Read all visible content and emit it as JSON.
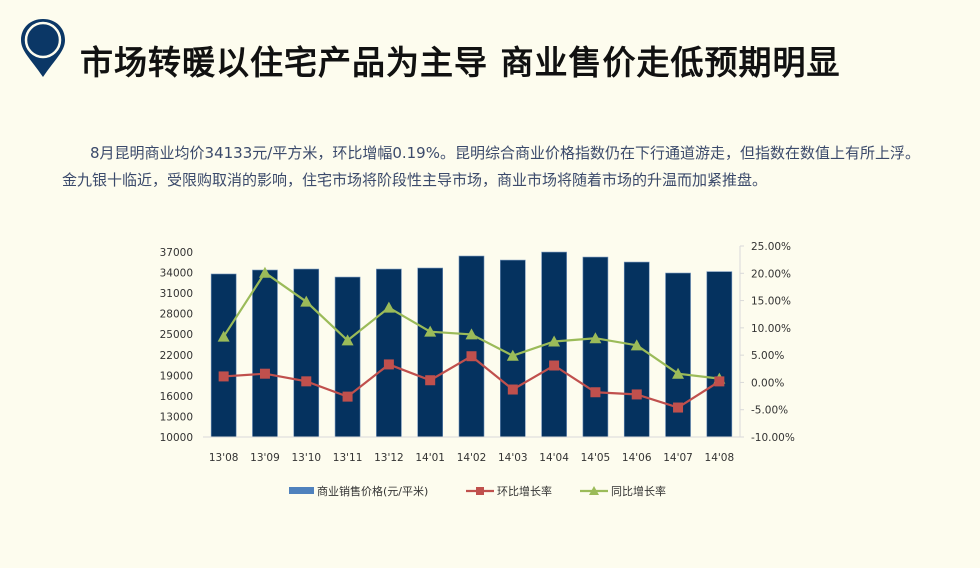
{
  "header": {
    "icon": "map-pin-icon",
    "title": "市场转暖以住宅产品为主导 商业售价走低预期明显"
  },
  "summary": {
    "text": "8月昆明商业均价34133元/平方米，环比增幅0.19%。昆明综合商业价格指数仍在下行通道游走，但指数在数值上有所上浮。金九银十临近，受限购取消的影响，住宅市场将阶段性主导市场，商业市场将随着市场的升温而加紧推盘。"
  },
  "colors": {
    "bar": "#05325f",
    "mom": "#c0504d",
    "yoy": "#9bbb59",
    "pin": "#0b3766"
  },
  "chart_data": {
    "type": "bar",
    "categories": [
      "13'08",
      "13'09",
      "13'10",
      "13'11",
      "13'12",
      "14'01",
      "14'02",
      "14'03",
      "14'04",
      "14'05",
      "14'06",
      "14'07",
      "14'08"
    ],
    "series": [
      {
        "name": "商业销售价格(元/平米)",
        "type": "bar",
        "axis": "left",
        "values": [
          33790,
          34370,
          34510,
          33340,
          34510,
          34660,
          36410,
          35820,
          36990,
          36260,
          35530,
          33930,
          34133
        ]
      },
      {
        "name": "环比增长率",
        "type": "line",
        "axis": "right",
        "marker": "square",
        "values": [
          1.1,
          1.6,
          0.2,
          -2.6,
          3.3,
          0.4,
          4.8,
          -1.3,
          3.1,
          -1.8,
          -2.2,
          -4.6,
          0.19
        ]
      },
      {
        "name": "同比增长率",
        "type": "line",
        "axis": "right",
        "marker": "triangle",
        "values": [
          8.4,
          20.1,
          14.8,
          7.7,
          13.7,
          9.3,
          8.8,
          4.9,
          7.5,
          8.1,
          6.8,
          1.6,
          0.7
        ]
      }
    ],
    "y_left": {
      "min": 10000,
      "max": 37000,
      "ticks": [
        "37000",
        "34000",
        "31000",
        "28000",
        "25000",
        "22000",
        "19000",
        "16000",
        "13000",
        "10000"
      ]
    },
    "y_right": {
      "min": -10,
      "max": 25,
      "ticks": [
        "25.00%",
        "20.00%",
        "15.00%",
        "10.00%",
        "5.00%",
        "0.00%",
        "-5.00%",
        "-10.00%"
      ]
    },
    "legend_position": "bottom",
    "grid": false
  }
}
